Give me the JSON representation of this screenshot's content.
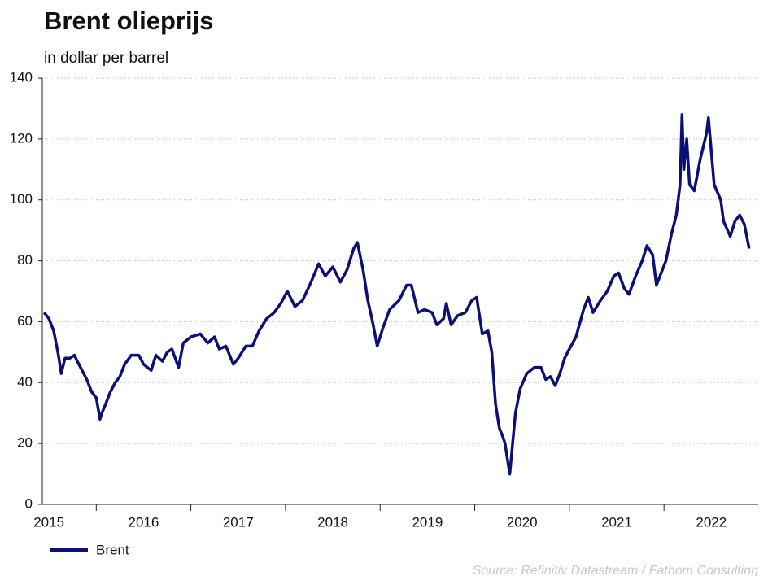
{
  "chart_data": {
    "type": "line",
    "title": "Brent olieprijs",
    "subtitle": "in dollar per barrel",
    "source": "Source: Refinitiv Datastream / Fathom Consulting",
    "x": [
      2015.45,
      2015.5,
      2015.55,
      2015.6,
      2015.63,
      2015.67,
      2015.72,
      2015.77,
      2015.8,
      2015.85,
      2015.9,
      2015.95,
      2016.0,
      2016.04,
      2016.06,
      2016.1,
      2016.15,
      2016.2,
      2016.25,
      2016.3,
      2016.37,
      2016.45,
      2016.5,
      2016.58,
      2016.63,
      2016.7,
      2016.75,
      2016.8,
      2016.87,
      2016.92,
      2017.0,
      2017.1,
      2017.18,
      2017.25,
      2017.3,
      2017.37,
      2017.45,
      2017.5,
      2017.58,
      2017.65,
      2017.72,
      2017.8,
      2017.88,
      2017.95,
      2018.02,
      2018.1,
      2018.18,
      2018.27,
      2018.35,
      2018.42,
      2018.5,
      2018.58,
      2018.65,
      2018.72,
      2018.76,
      2018.82,
      2018.87,
      2018.92,
      2018.97,
      2019.03,
      2019.1,
      2019.2,
      2019.28,
      2019.33,
      2019.4,
      2019.47,
      2019.55,
      2019.6,
      2019.67,
      2019.7,
      2019.75,
      2019.82,
      2019.9,
      2019.97,
      2020.02,
      2020.08,
      2020.14,
      2020.18,
      2020.22,
      2020.26,
      2020.3,
      2020.32,
      2020.35,
      2020.37,
      2020.4,
      2020.43,
      2020.48,
      2020.55,
      2020.63,
      2020.7,
      2020.75,
      2020.8,
      2020.85,
      2020.9,
      2020.95,
      2021.0,
      2021.07,
      2021.15,
      2021.2,
      2021.25,
      2021.33,
      2021.4,
      2021.47,
      2021.52,
      2021.58,
      2021.63,
      2021.7,
      2021.77,
      2021.82,
      2021.88,
      2021.92,
      2021.97,
      2022.02,
      2022.08,
      2022.13,
      2022.17,
      2022.19,
      2022.21,
      2022.24,
      2022.27,
      2022.32,
      2022.38,
      2022.45,
      2022.47,
      2022.53,
      2022.6,
      2022.63,
      2022.7,
      2022.75,
      2022.8,
      2022.85,
      2022.9
    ],
    "series": [
      {
        "name": "Brent",
        "color": "#0c0f74",
        "values": [
          63,
          61,
          57,
          49,
          43,
          48,
          48,
          49,
          47,
          44,
          41,
          37,
          35,
          28,
          30,
          33,
          37,
          40,
          42,
          46,
          49,
          49,
          46,
          44,
          49,
          47,
          50,
          51,
          45,
          53,
          55,
          56,
          53,
          55,
          51,
          52,
          46,
          48,
          52,
          52,
          57,
          61,
          63,
          66,
          70,
          65,
          67,
          73,
          79,
          75,
          78,
          73,
          77,
          84,
          86,
          77,
          67,
          60,
          52,
          58,
          64,
          67,
          72,
          72,
          63,
          64,
          63,
          59,
          61,
          66,
          59,
          62,
          63,
          67,
          68,
          56,
          57,
          50,
          33,
          25,
          22,
          20,
          14,
          10,
          20,
          30,
          38,
          43,
          45,
          45,
          41,
          42,
          39,
          43,
          48,
          51,
          55,
          64,
          68,
          63,
          67,
          70,
          75,
          76,
          71,
          69,
          75,
          80,
          85,
          82,
          72,
          76,
          80,
          89,
          95,
          105,
          128,
          110,
          120,
          105,
          103,
          113,
          122,
          127,
          105,
          100,
          93,
          88,
          93,
          95,
          92,
          84
        ]
      }
    ],
    "xlim": [
      2015.43,
      2022.91
    ],
    "xticks": [
      {
        "value": 2015.5,
        "label": "2015"
      },
      {
        "value": 2016.5,
        "label": "2016"
      },
      {
        "value": 2017.5,
        "label": "2017"
      },
      {
        "value": 2018.5,
        "label": "2018"
      },
      {
        "value": 2019.5,
        "label": "2019"
      },
      {
        "value": 2020.5,
        "label": "2020"
      },
      {
        "value": 2021.5,
        "label": "2021"
      },
      {
        "value": 2022.5,
        "label": "2022"
      }
    ],
    "xtick_marks": [
      2016,
      2017,
      2018,
      2019,
      2020,
      2021,
      2022
    ],
    "ylim": [
      0,
      140
    ],
    "yticks": [
      0,
      20,
      40,
      60,
      80,
      100,
      120,
      140
    ],
    "grid": true
  }
}
